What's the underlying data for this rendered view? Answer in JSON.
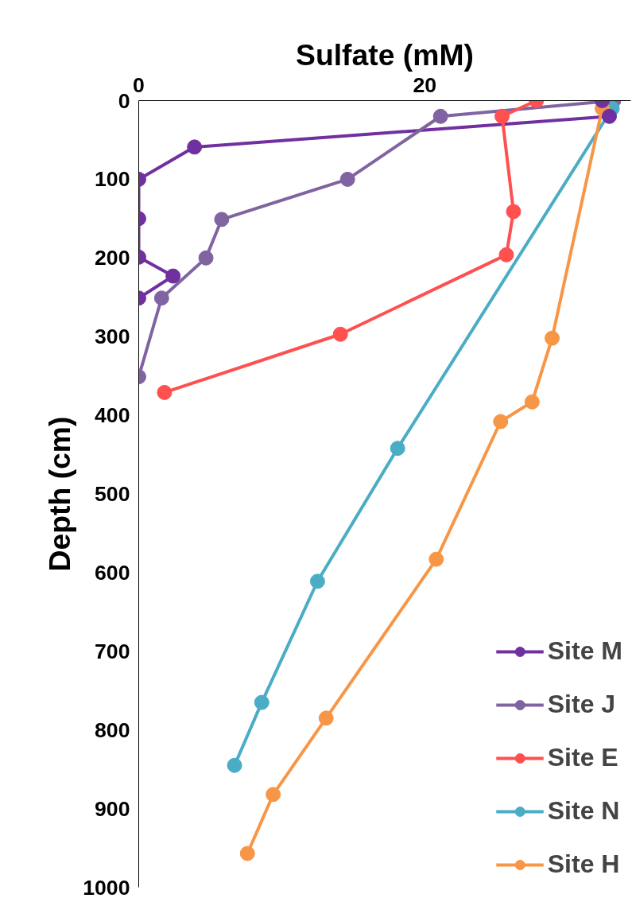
{
  "chart_data": {
    "type": "line",
    "xlabel": "Sulfate (mM)",
    "ylabel": "Depth (cm)",
    "xlim": [
      0,
      34.4
    ],
    "xticks": [
      0,
      20
    ],
    "ylim": [
      1000,
      0
    ],
    "yticks": [
      0,
      100,
      200,
      300,
      400,
      500,
      600,
      700,
      800,
      900,
      1000
    ],
    "grid": false,
    "legend": "bottom right",
    "marker": "circle",
    "line_style": "solid",
    "series": [
      {
        "name": "Site M",
        "color": "#7030a0",
        "x": [
          32.4,
          32.9,
          3.9,
          0,
          0,
          0,
          2.4,
          0
        ],
        "values": [
          0,
          20,
          59,
          100,
          150,
          199,
          223,
          251
        ]
      },
      {
        "name": "Site J",
        "color": "#8064a2",
        "x": [
          33.2,
          21.1,
          14.6,
          5.8,
          4.7,
          1.6,
          0
        ],
        "values": [
          0,
          20,
          100,
          151,
          200,
          251,
          351
        ]
      },
      {
        "name": "Site E",
        "color": "#ff5050",
        "x": [
          27.8,
          25.4,
          26.2,
          25.7,
          14.1,
          1.8
        ],
        "values": [
          0,
          20,
          141,
          196,
          297,
          371
        ]
      },
      {
        "name": "Site N",
        "color": "#4bacc6",
        "x": [
          33.1,
          18.1,
          12.5,
          8.6,
          6.7
        ],
        "values": [
          10,
          442,
          611,
          765,
          845
        ]
      },
      {
        "name": "Site H",
        "color": "#f79646",
        "x": [
          32.4,
          28.9,
          27.5,
          25.3,
          20.8,
          13.1,
          9.4,
          7.6
        ],
        "values": [
          10,
          302,
          383,
          408,
          583,
          785,
          882,
          957
        ]
      }
    ]
  }
}
